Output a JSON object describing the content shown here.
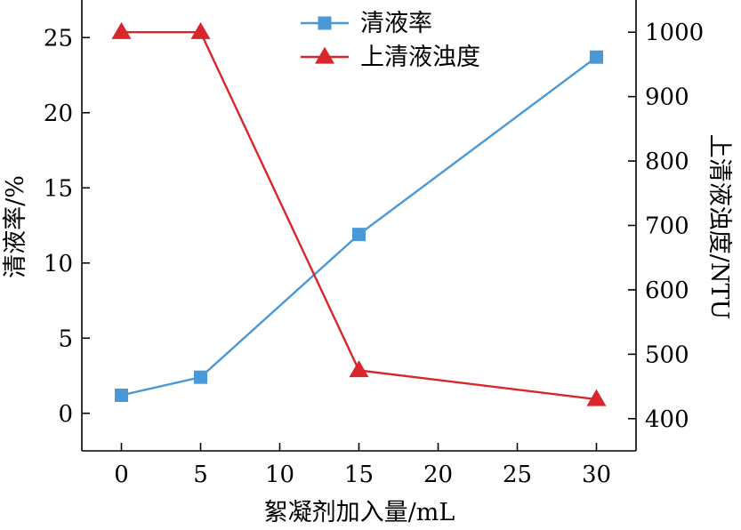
{
  "chart_data": {
    "type": "line",
    "xlabel": "絮凝剂加入量/mL",
    "ylabel_left": "清液率/%",
    "ylabel_right": "上清液浊度/NTU",
    "xlim": [
      -2.5,
      32.5
    ],
    "xticks": [
      0,
      5,
      10,
      15,
      20,
      25,
      30
    ],
    "ylim_left": [
      -2.5,
      27.5
    ],
    "yticks_left": [
      0,
      5,
      10,
      15,
      20,
      25
    ],
    "ylim_right": [
      350,
      1050
    ],
    "yticks_right": [
      400,
      500,
      600,
      700,
      800,
      900,
      1000
    ],
    "grid": false,
    "legend_position": "top-center",
    "series": [
      {
        "name": "清液率",
        "axis": "left",
        "marker": "square",
        "color": "#4a98d6",
        "x": [
          0,
          5,
          15,
          30
        ],
        "values": [
          1.2,
          2.4,
          11.9,
          23.7
        ]
      },
      {
        "name": "上清液浊度",
        "axis": "right",
        "marker": "triangle",
        "color": "#d9262d",
        "x": [
          0,
          5,
          15,
          30
        ],
        "values": [
          1000,
          1000,
          475,
          430
        ]
      }
    ]
  }
}
